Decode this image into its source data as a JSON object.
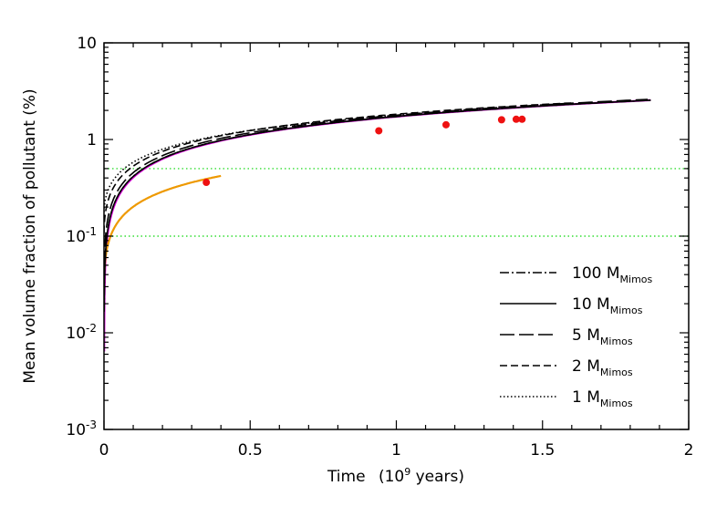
{
  "chart_data": {
    "type": "line",
    "title": "",
    "xlabel_main": "Time",
    "xlabel_unit_prefix": "(10",
    "xlabel_unit_sup": "9",
    "xlabel_unit_suffix": " years)",
    "ylabel": "Mean volume fraction of pollutant (%)",
    "xlim": [
      0,
      2
    ],
    "ylim": [
      0.001,
      10
    ],
    "yscale": "log",
    "x_ticks": [
      {
        "value": 0,
        "label": "0"
      },
      {
        "value": 0.5,
        "label": "0.5"
      },
      {
        "value": 1,
        "label": "1"
      },
      {
        "value": 1.5,
        "label": "1.5"
      },
      {
        "value": 2,
        "label": "2"
      }
    ],
    "y_ticks": [
      {
        "value": 0.001,
        "base": "10",
        "exp": "-3"
      },
      {
        "value": 0.01,
        "base": "10",
        "exp": "-2"
      },
      {
        "value": 0.1,
        "base": "10",
        "exp": "-1"
      },
      {
        "value": 1,
        "base": "1",
        "exp": ""
      },
      {
        "value": 10,
        "base": "10",
        "exp": ""
      }
    ],
    "reference_lines": [
      {
        "y": 0.5,
        "color": "#33dd33",
        "style": "dotted"
      },
      {
        "y": 0.1,
        "color": "#33dd33",
        "style": "dotted"
      }
    ],
    "series": [
      {
        "name": "100 M",
        "sub": "Mimos",
        "dash": "dashdot",
        "x_end": 1.87,
        "y_end": 2.55,
        "offset": 0.0,
        "color": "#000000"
      },
      {
        "name": "10 M",
        "sub": "Mimos",
        "dash": "solid",
        "x_end": 1.87,
        "y_end": 2.55,
        "offset": 0.0,
        "color": "#000000"
      },
      {
        "name": "5 M",
        "sub": "Mimos",
        "dash": "longdash",
        "x_end": 1.86,
        "y_end": 2.6,
        "offset": 0.012,
        "color": "#000000"
      },
      {
        "name": "2 M",
        "sub": "Mimos",
        "dash": "dash",
        "x_end": 1.61,
        "y_end": 2.4,
        "offset": 0.045,
        "color": "#000000"
      },
      {
        "name": "1 M",
        "sub": "Mimos",
        "dash": "dotted",
        "x_end": 1.36,
        "y_end": 2.1,
        "offset": 0.085,
        "color": "#000000"
      }
    ],
    "extra_curves": [
      {
        "name": "magenta",
        "color": "#dd00dd",
        "x_end": 1.87,
        "y_end": 2.55,
        "offset": -0.004
      },
      {
        "name": "orange",
        "color": "#ee9900",
        "x_end": 0.4,
        "y_end": 0.42,
        "offset": 0.075
      }
    ],
    "markers": {
      "color": "#ee1111",
      "points": [
        [
          0.35,
          0.36
        ],
        [
          0.94,
          1.23
        ],
        [
          1.17,
          1.42
        ],
        [
          1.36,
          1.6
        ],
        [
          1.41,
          1.62
        ],
        [
          1.43,
          1.62
        ]
      ]
    }
  }
}
